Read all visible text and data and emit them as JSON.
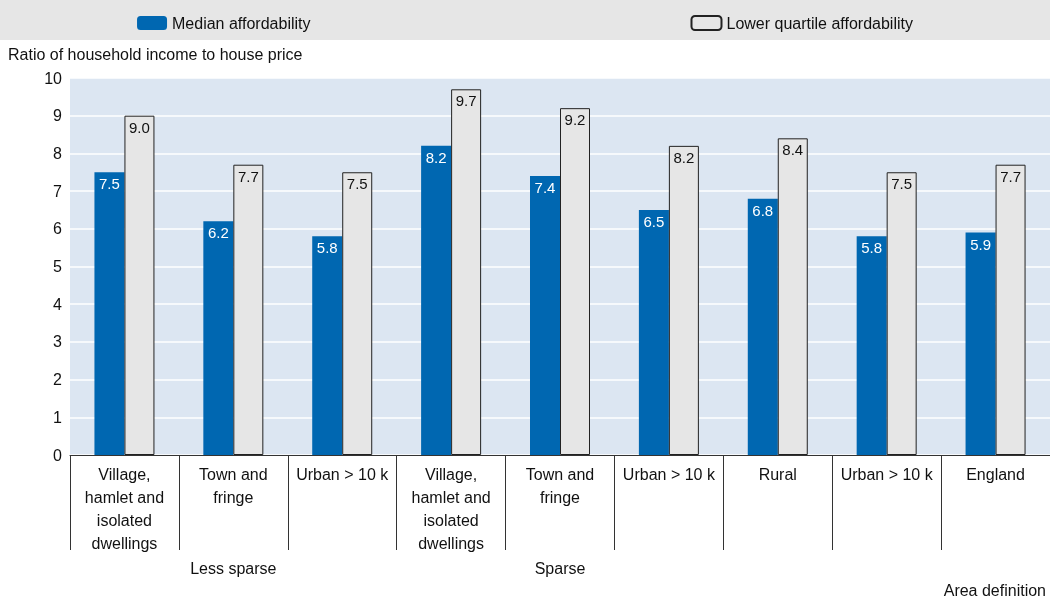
{
  "chart_data": {
    "type": "bar",
    "ylabel": "Ratio of household income to house price",
    "categories": [
      "Village, hamlet and isolated dwellings",
      "Town and fringe",
      "Urban > 10 k",
      "Village, hamlet and isolated dwellings",
      "Town and fringe",
      "Urban > 10 k",
      "Rural",
      "Urban > 10 k",
      "England"
    ],
    "series": [
      {
        "name": "Median affordability",
        "color": "#0067b1",
        "values": [
          7.5,
          6.2,
          5.8,
          8.2,
          7.4,
          6.5,
          6.8,
          5.8,
          5.9
        ],
        "value_labels": [
          "7.5",
          "6.2",
          "5.8",
          "8.2",
          "7.4",
          "6.5",
          "6.8",
          "5.8",
          "5.9"
        ]
      },
      {
        "name": "Lower quartile affordability",
        "color": "#e6e6e6",
        "values": [
          9.0,
          7.7,
          7.5,
          9.7,
          9.2,
          8.2,
          8.4,
          7.5,
          7.7
        ],
        "value_labels": [
          "9.0",
          "7.7",
          "7.5",
          "9.7",
          "9.2",
          "8.2",
          "8.4",
          "7.5",
          "7.7"
        ]
      }
    ],
    "ylim": [
      0,
      10
    ],
    "yticks": [
      0,
      1,
      2,
      3,
      4,
      5,
      6,
      7,
      8,
      9,
      10
    ],
    "grid": "y",
    "legend": "top",
    "annotations": [
      "Less sparse",
      "Sparse",
      "Area definition"
    ]
  }
}
